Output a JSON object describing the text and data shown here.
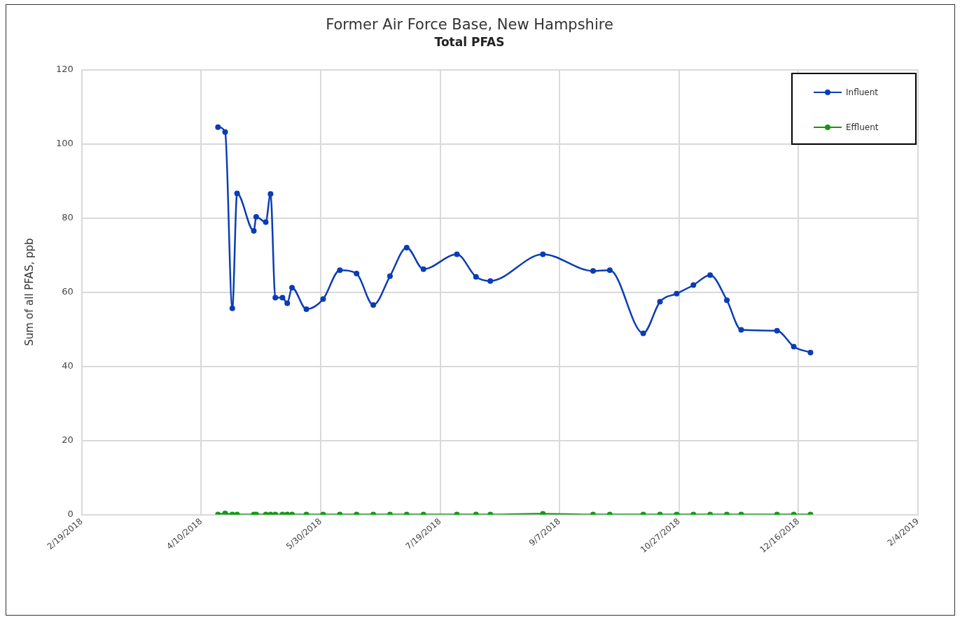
{
  "chart_data": {
    "type": "line",
    "title": "Former Air Force Base, New Hampshire",
    "subtitle": "Total PFAS",
    "ylabel": "Sum of all PFAS, ppb",
    "x": [
      "2018-04-17",
      "2018-04-20",
      "2018-04-23",
      "2018-04-25",
      "2018-05-02",
      "2018-05-03",
      "2018-05-07",
      "2018-05-09",
      "2018-05-11",
      "2018-05-14",
      "2018-05-16",
      "2018-05-18",
      "2018-05-24",
      "2018-05-31",
      "2018-06-07",
      "2018-06-14",
      "2018-06-21",
      "2018-06-28",
      "2018-07-05",
      "2018-07-12",
      "2018-07-26",
      "2018-08-03",
      "2018-08-09",
      "2018-08-31",
      "2018-09-21",
      "2018-09-28",
      "2018-10-12",
      "2018-10-19",
      "2018-10-26",
      "2018-11-02",
      "2018-11-09",
      "2018-11-16",
      "2018-11-22",
      "2018-12-07",
      "2018-12-14",
      "2018-12-21"
    ],
    "series": [
      {
        "name": "Influent",
        "color": "#0a3cb4",
        "values": [
          104.5,
          103.2,
          55.6,
          86.6,
          76.5,
          80.3,
          78.9,
          86.5,
          58.5,
          58.5,
          57.0,
          61.2,
          55.4,
          58.1,
          65.9,
          65.0,
          56.5,
          64.3,
          72.0,
          66.2,
          70.2,
          64.1,
          63.0,
          70.2,
          65.7,
          65.9,
          48.9,
          57.4,
          59.6,
          61.9,
          64.6,
          57.8,
          49.8,
          49.6,
          45.3,
          43.7
        ]
      },
      {
        "name": "Effluent",
        "color": "#119911",
        "values": [
          0,
          0.3,
          0,
          0,
          0,
          0,
          0,
          0,
          0,
          0,
          0,
          0,
          0,
          0,
          0,
          0,
          0,
          0,
          0,
          0,
          0,
          0,
          0,
          0.2,
          0,
          0,
          0,
          0,
          0,
          0,
          0,
          0,
          0,
          0,
          0,
          0
        ]
      }
    ],
    "xlim": [
      "2018-02-19",
      "2019-02-04"
    ],
    "xticks": [
      {
        "value": "2018-02-19",
        "label": "2/19/2018"
      },
      {
        "value": "2018-04-10",
        "label": "4/10/2018"
      },
      {
        "value": "2018-05-30",
        "label": "5/30/2018"
      },
      {
        "value": "2018-07-19",
        "label": "7/19/2018"
      },
      {
        "value": "2018-09-07",
        "label": "9/7/2018"
      },
      {
        "value": "2018-10-27",
        "label": "10/27/2018"
      },
      {
        "value": "2018-12-16",
        "label": "12/16/2018"
      },
      {
        "value": "2019-02-04",
        "label": "2/4/2019"
      }
    ],
    "ylim": [
      0,
      120
    ],
    "yticks": [
      0,
      20,
      40,
      60,
      80,
      100,
      120
    ],
    "grid": true,
    "legend": "top right",
    "marker": "circle",
    "line_style": "solid"
  }
}
